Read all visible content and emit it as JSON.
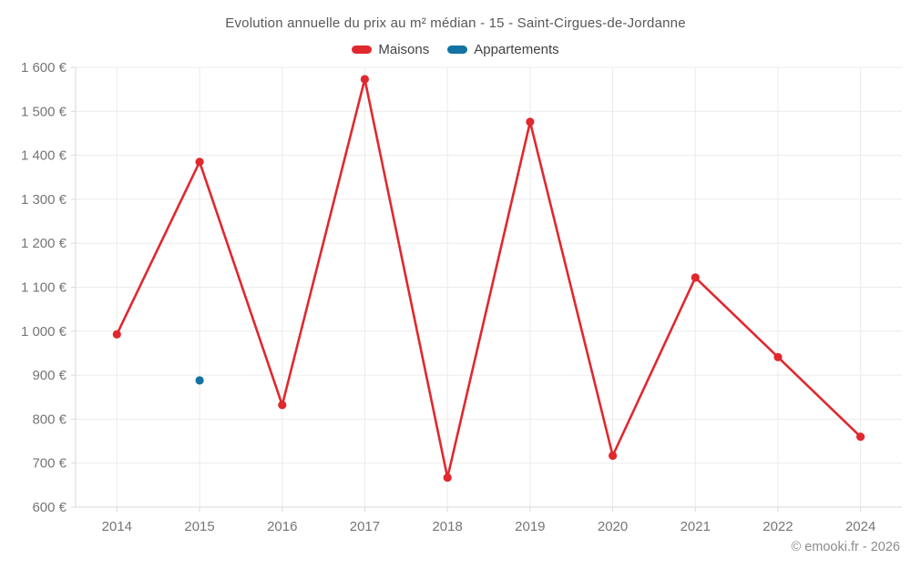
{
  "title": "Evolution annuelle du prix au m² médian - 15 - Saint-Cirgues-de-Jordanne",
  "copyright": "© emooki.fr - 2026",
  "colors": {
    "maisons": "#e0282e",
    "appartements": "#1272a3",
    "grid": "#ececec",
    "axis": "#d9d9d9",
    "tick_label": "#767676"
  },
  "legend": {
    "items": [
      {
        "label": "Maisons",
        "color": "#e0282e"
      },
      {
        "label": "Appartements",
        "color": "#1272a3"
      }
    ]
  },
  "chart_data": {
    "type": "line",
    "title": "Evolution annuelle du prix au m² médian - 15 - Saint-Cirgues-de-Jordanne",
    "categories": [
      "2014",
      "2015",
      "2016",
      "2017",
      "2018",
      "2019",
      "2020",
      "2021",
      "2022",
      "2024"
    ],
    "series": [
      {
        "name": "Maisons",
        "color": "#e0282e",
        "values": [
          993,
          1385,
          832,
          1573,
          667,
          1476,
          717,
          1122,
          941,
          760
        ]
      },
      {
        "name": "Appartements",
        "color": "#1272a3",
        "values": [
          null,
          888,
          null,
          null,
          null,
          null,
          null,
          null,
          null,
          null
        ]
      }
    ],
    "xlabel": "",
    "ylabel": "",
    "ylim": [
      600,
      1600
    ],
    "ytick_step": 100,
    "ytick_labels": [
      "600 €",
      "700 €",
      "800 €",
      "900 €",
      "1 000 €",
      "1 100 €",
      "1 200 €",
      "1 300 €",
      "1 400 €",
      "1 500 €",
      "1 600 €"
    ],
    "grid": true,
    "legend_position": "top"
  }
}
